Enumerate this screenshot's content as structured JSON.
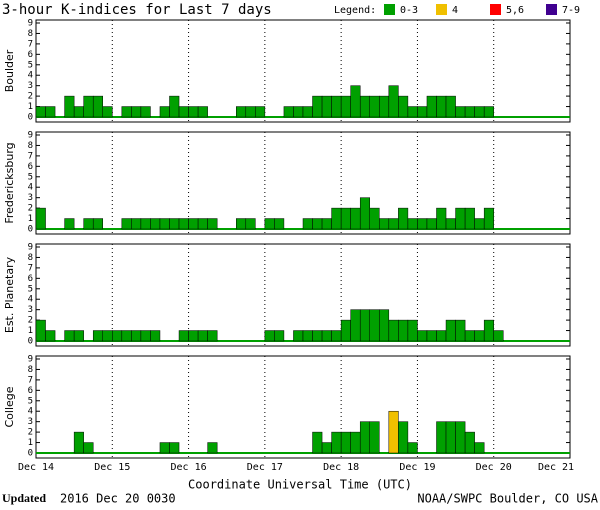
{
  "chart_data": {
    "type": "bar",
    "title": "3-hour K-indices for Last 7 days",
    "legend_title": "Legend:",
    "legend": [
      {
        "label": "0-3",
        "color": "#00a000"
      },
      {
        "label": "4",
        "color": "#f0c000"
      },
      {
        "label": "5,6",
        "color": "#ff0000"
      },
      {
        "label": "7-9",
        "color": "#400090"
      }
    ],
    "xlabel": "Coordinate Universal Time (UTC)",
    "xticks": [
      "Dec 14",
      "Dec 15",
      "Dec 16",
      "Dec 17",
      "Dec 18",
      "Dec 19",
      "Dec 20",
      "Dec 21"
    ],
    "ylim": [
      0,
      9
    ],
    "yticks": [
      0,
      1,
      2,
      3,
      4,
      5,
      6,
      7,
      8,
      9
    ],
    "grid": true,
    "series": [
      {
        "name": "Boulder",
        "color": "#00a000",
        "values": [
          1,
          1,
          0,
          2,
          1,
          2,
          2,
          1,
          0,
          1,
          1,
          1,
          0,
          1,
          2,
          1,
          1,
          1,
          0,
          0,
          0,
          1,
          1,
          1,
          0,
          0,
          1,
          1,
          1,
          2,
          2,
          2,
          2,
          3,
          2,
          2,
          2,
          3,
          2,
          1,
          1,
          2,
          2,
          2,
          1,
          1,
          1,
          1
        ]
      },
      {
        "name": "Fredericksburg",
        "color": "#00a000",
        "values": [
          2,
          0,
          0,
          1,
          0,
          1,
          1,
          0,
          0,
          1,
          1,
          1,
          1,
          1,
          1,
          1,
          1,
          1,
          1,
          0,
          0,
          1,
          1,
          0,
          1,
          1,
          0,
          0,
          1,
          1,
          1,
          2,
          2,
          2,
          3,
          2,
          1,
          1,
          2,
          1,
          1,
          1,
          2,
          1,
          2,
          2,
          1,
          2
        ]
      },
      {
        "name": "Est. Planetary",
        "color": "#00a000",
        "values": [
          2,
          1,
          0,
          1,
          1,
          0,
          1,
          1,
          1,
          1,
          1,
          1,
          1,
          0,
          0,
          1,
          1,
          1,
          1,
          0,
          0,
          0,
          0,
          0,
          1,
          1,
          0,
          1,
          1,
          1,
          1,
          1,
          2,
          3,
          3,
          3,
          3,
          2,
          2,
          2,
          1,
          1,
          1,
          2,
          2,
          1,
          1,
          2,
          1
        ]
      },
      {
        "name": "College",
        "color": "#00a000",
        "values": [
          0,
          0,
          0,
          0,
          2,
          1,
          0,
          0,
          0,
          0,
          0,
          0,
          0,
          1,
          1,
          0,
          0,
          0,
          1,
          0,
          0,
          0,
          0,
          0,
          0,
          0,
          0,
          0,
          0,
          2,
          1,
          2,
          2,
          2,
          3,
          3,
          0,
          4,
          3,
          1,
          0,
          0,
          3,
          3,
          3,
          2,
          1,
          0
        ],
        "colors": [
          "#00a000",
          "#00a000",
          "#00a000",
          "#00a000",
          "#00a000",
          "#00a000",
          "#00a000",
          "#00a000",
          "#00a000",
          "#00a000",
          "#00a000",
          "#00a000",
          "#00a000",
          "#00a000",
          "#00a000",
          "#00a000",
          "#00a000",
          "#00a000",
          "#00a000",
          "#00a000",
          "#00a000",
          "#00a000",
          "#00a000",
          "#00a000",
          "#00a000",
          "#00a000",
          "#00a000",
          "#00a000",
          "#00a000",
          "#00a000",
          "#00a000",
          "#00a000",
          "#00a000",
          "#00a000",
          "#00a000",
          "#00a000",
          "#00a000",
          "#f0c000",
          "#00a000",
          "#00a000",
          "#00a000",
          "#00a000",
          "#00a000",
          "#00a000",
          "#00a000",
          "#00a000",
          "#00a000",
          "#00a000"
        ]
      }
    ]
  },
  "footer": {
    "updated_label": "Updated",
    "updated": "2016 Dec 20 0030",
    "source": "NOAA/SWPC Boulder, CO USA"
  }
}
